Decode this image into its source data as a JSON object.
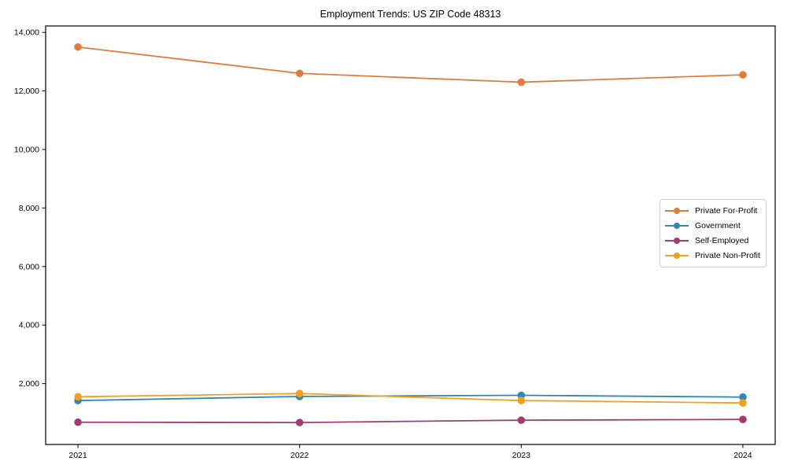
{
  "chart_data": {
    "type": "line",
    "title": "Employment Trends: US ZIP Code 48313",
    "xlabel": "",
    "ylabel": "",
    "categories": [
      "2021",
      "2022",
      "2023",
      "2024"
    ],
    "series": [
      {
        "name": "Private For-Profit",
        "color": "#E07B3F",
        "values": [
          13500,
          12600,
          12300,
          12550
        ]
      },
      {
        "name": "Government",
        "color": "#3787A8",
        "values": [
          1420,
          1560,
          1600,
          1540
        ]
      },
      {
        "name": "Self-Employed",
        "color": "#A23B72",
        "values": [
          680,
          670,
          750,
          775
        ]
      },
      {
        "name": "Private Non-Profit",
        "color": "#F2A024",
        "values": [
          1550,
          1660,
          1420,
          1340
        ]
      }
    ],
    "yticks": {
      "values": [
        2000,
        4000,
        6000,
        8000,
        10000,
        12000,
        14000
      ],
      "labels": [
        "2,000",
        "4,000",
        "6,000",
        "8,000",
        "10,000",
        "12,000",
        "14,000"
      ]
    },
    "ylim": [
      -80,
      14220
    ],
    "grid": false,
    "legend_position": "center-right",
    "marker": "circle",
    "axis_color": "#000000",
    "background_color": "#ffffff"
  }
}
